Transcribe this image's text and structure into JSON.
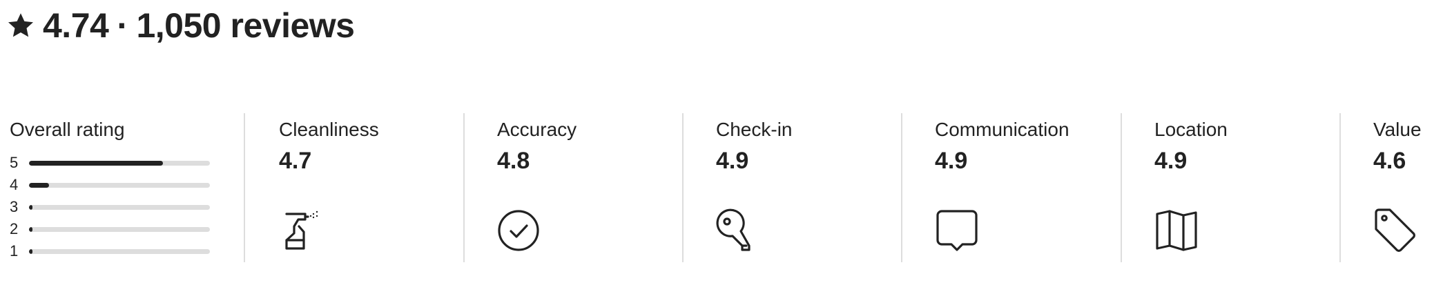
{
  "header": {
    "rating": "4.74",
    "separator": "·",
    "reviews": "1,050 reviews"
  },
  "overall": {
    "label": "Overall rating",
    "distribution": [
      {
        "stars": "5",
        "fraction": 0.74
      },
      {
        "stars": "4",
        "fraction": 0.11
      },
      {
        "stars": "3",
        "fraction": 0.02
      },
      {
        "stars": "2",
        "fraction": 0.01
      },
      {
        "stars": "1",
        "fraction": 0.01
      }
    ]
  },
  "categories": [
    {
      "label": "Cleanliness",
      "value": "4.7",
      "icon": "spray-bottle-icon"
    },
    {
      "label": "Accuracy",
      "value": "4.8",
      "icon": "check-circle-icon"
    },
    {
      "label": "Check-in",
      "value": "4.9",
      "icon": "key-icon"
    },
    {
      "label": "Communication",
      "value": "4.9",
      "icon": "chat-bubble-icon"
    },
    {
      "label": "Location",
      "value": "4.9",
      "icon": "map-icon"
    },
    {
      "label": "Value",
      "value": "4.6",
      "icon": "price-tag-icon"
    }
  ],
  "colors": {
    "text": "#222222",
    "track": "#dddddd",
    "divider": "#dddddd"
  }
}
